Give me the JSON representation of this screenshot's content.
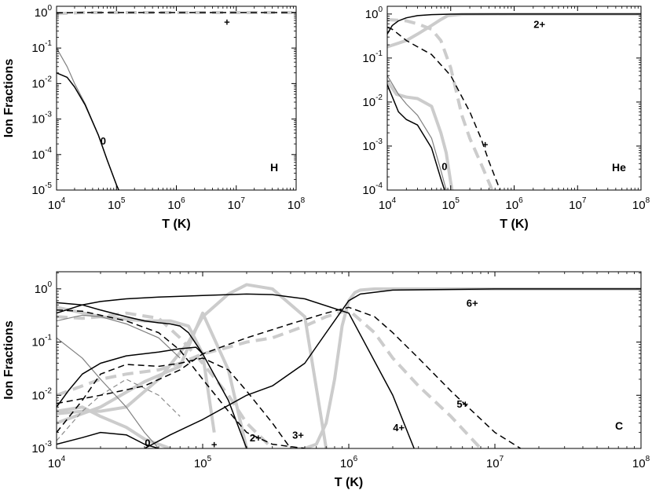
{
  "chart_data": [
    {
      "type": "line",
      "panel": "H",
      "xlabel": "T (K)",
      "ylabel": "Ion Fractions",
      "xscale": "log",
      "yscale": "log",
      "xlim": [
        10000,
        100000000
      ],
      "ylim": [
        1e-05,
        1.5
      ],
      "x_ticks": [
        {
          "base": "10",
          "exp": "4"
        },
        {
          "base": "10",
          "exp": "5"
        },
        {
          "base": "10",
          "exp": "6"
        },
        {
          "base": "10",
          "exp": "7"
        },
        {
          "base": "10",
          "exp": "8"
        }
      ],
      "y_ticks": [
        {
          "base": "10",
          "exp": "-5"
        },
        {
          "base": "10",
          "exp": "-4"
        },
        {
          "base": "10",
          "exp": "-3"
        },
        {
          "base": "10",
          "exp": "-2"
        },
        {
          "base": "10",
          "exp": "-1"
        },
        {
          "base": "10",
          "exp": "0"
        }
      ],
      "panel_label": "H",
      "labels": [
        {
          "text": "0",
          "x": 60000,
          "y": 0.00025
        },
        {
          "text": "+",
          "x": 7000000,
          "y": 0.55
        }
      ],
      "series": [
        {
          "style": "black-solid",
          "x": [
            10000,
            15000,
            20000,
            30000,
            50000,
            70000,
            100000,
            120000
          ],
          "y": [
            0.02,
            0.015,
            0.008,
            0.0025,
            0.00035,
            7e-05,
            1.4e-05,
            7e-06
          ]
        },
        {
          "style": "gray-thin",
          "x": [
            10000,
            15000,
            20000,
            30000,
            50000,
            70000,
            100000,
            120000
          ],
          "y": [
            0.1,
            0.03,
            0.01,
            0.0027,
            0.00035,
            7e-05,
            1.4e-05,
            7e-06
          ]
        },
        {
          "style": "black-dashed",
          "x": [
            10000,
            30000,
            100000,
            100000000
          ],
          "y": [
            0.98,
            0.998,
            1.0,
            1.0
          ]
        },
        {
          "style": "gray-thick-dashed",
          "x": [
            10000,
            30000,
            100000,
            100000000
          ],
          "y": [
            0.93,
            0.997,
            1.0,
            1.0
          ]
        }
      ]
    },
    {
      "type": "line",
      "panel": "He",
      "xlabel": "T (K)",
      "ylabel": "",
      "xscale": "log",
      "yscale": "log",
      "xlim": [
        10000,
        100000000
      ],
      "ylim": [
        0.0001,
        1.5
      ],
      "x_ticks": [
        {
          "base": "10",
          "exp": "4"
        },
        {
          "base": "10",
          "exp": "5"
        },
        {
          "base": "10",
          "exp": "6"
        },
        {
          "base": "10",
          "exp": "7"
        },
        {
          "base": "10",
          "exp": "8"
        }
      ],
      "y_ticks": [
        {
          "base": "10",
          "exp": "-4"
        },
        {
          "base": "10",
          "exp": "-3"
        },
        {
          "base": "10",
          "exp": "-2"
        },
        {
          "base": "10",
          "exp": "-1"
        },
        {
          "base": "10",
          "exp": "0"
        }
      ],
      "panel_label": "He",
      "labels": [
        {
          "text": "2+",
          "x": 2500000,
          "y": 0.6
        },
        {
          "text": "+",
          "x": 350000,
          "y": 0.0011
        },
        {
          "text": "0",
          "x": 80000,
          "y": 0.00035
        }
      ],
      "series": [
        {
          "style": "black-solid",
          "x": [
            10000,
            12000,
            15000,
            20000,
            30000,
            50000,
            100000,
            1000000,
            100000000
          ],
          "y": [
            0.35,
            0.55,
            0.7,
            0.82,
            0.92,
            0.97,
            0.997,
            1.0,
            1.0
          ]
        },
        {
          "style": "black-solid",
          "x": [
            10000,
            15000,
            20000,
            30000,
            50000,
            70000,
            80000
          ],
          "y": [
            0.025,
            0.006,
            0.004,
            0.003,
            0.0009,
            0.00018,
            0.0001
          ]
        },
        {
          "style": "gray-thin",
          "x": [
            10000,
            15000,
            20000,
            30000,
            50000,
            70000,
            85000
          ],
          "y": [
            0.04,
            0.015,
            0.009,
            0.005,
            0.0015,
            0.00028,
            0.0001
          ]
        },
        {
          "style": "black-dashed",
          "x": [
            10000,
            12000,
            15000,
            20000,
            30000,
            50000,
            100000,
            200000,
            300000,
            400000,
            600000
          ],
          "y": [
            0.5,
            0.45,
            0.35,
            0.25,
            0.18,
            0.12,
            0.04,
            0.006,
            0.0015,
            0.00045,
            0.0001
          ]
        },
        {
          "style": "gray-thick",
          "x": [
            10000,
            14000,
            20000,
            30000,
            50000,
            70000,
            85000,
            100000,
            105000
          ],
          "y": [
            0.03,
            0.015,
            0.013,
            0.012,
            0.008,
            0.002,
            0.0007,
            0.00015,
            0.0001
          ]
        },
        {
          "style": "gray-thick",
          "x": [
            10000,
            20000,
            30000,
            50000,
            70000,
            90000,
            150000,
            1000000,
            100000000
          ],
          "y": [
            0.18,
            0.25,
            0.35,
            0.55,
            0.75,
            0.92,
            0.99,
            1.0,
            1.0
          ]
        },
        {
          "style": "gray-thick-dashed",
          "x": [
            10000,
            20000,
            30000,
            50000,
            70000,
            100000,
            150000,
            200000,
            300000,
            450000
          ],
          "y": [
            0.75,
            0.7,
            0.6,
            0.45,
            0.25,
            0.06,
            0.005,
            0.0015,
            0.0004,
            0.0001
          ]
        }
      ]
    },
    {
      "type": "line",
      "panel": "C",
      "xlabel": "T (K)",
      "ylabel": "Ion Fractions",
      "xscale": "log",
      "yscale": "log",
      "xlim": [
        10000,
        100000000
      ],
      "ylim": [
        0.001,
        2.1
      ],
      "x_ticks": [
        {
          "base": "10",
          "exp": "4"
        },
        {
          "base": "10",
          "exp": "5"
        },
        {
          "base": "10",
          "exp": "6"
        },
        {
          "base": "10",
          "exp": "7"
        },
        {
          "base": "10",
          "exp": "8"
        }
      ],
      "y_ticks": [
        {
          "base": "10",
          "exp": "-3"
        },
        {
          "base": "10",
          "exp": "-2"
        },
        {
          "base": "10",
          "exp": "-1"
        },
        {
          "base": "10",
          "exp": "0"
        }
      ],
      "panel_label": "C",
      "labels": [
        {
          "text": "6+",
          "x": 7000000,
          "y": 0.55
        },
        {
          "text": "5+",
          "x": 6000000,
          "y": 0.007
        },
        {
          "text": "4+",
          "x": 2200000,
          "y": 0.0025
        },
        {
          "text": "3+",
          "x": 450000,
          "y": 0.0018
        },
        {
          "text": "2+",
          "x": 230000,
          "y": 0.0016
        },
        {
          "text": "+",
          "x": 120000,
          "y": 0.0012
        },
        {
          "text": "0",
          "x": 42000,
          "y": 0.0013
        }
      ],
      "series": [
        {
          "style": "black-solid",
          "x": [
            10000,
            15000,
            20000,
            30000,
            40000,
            50000
          ],
          "y": [
            0.0012,
            0.0016,
            0.002,
            0.0018,
            0.0012,
            0.001
          ]
        },
        {
          "style": "gray-thin",
          "x": [
            10000,
            15000,
            20000,
            30000,
            40000,
            50000
          ],
          "y": [
            0.12,
            0.05,
            0.02,
            0.006,
            0.002,
            0.001
          ]
        },
        {
          "style": "black-solid",
          "x": [
            10000,
            15000,
            20000,
            30000,
            40000,
            50000,
            60000,
            70000,
            80000,
            100000
          ],
          "y": [
            0.55,
            0.5,
            0.4,
            0.3,
            0.25,
            0.23,
            0.22,
            0.2,
            0.15,
            0.06
          ]
        },
        {
          "style": "gray-thin",
          "x": [
            10000,
            15000,
            20000,
            30000,
            50000,
            70000
          ],
          "y": [
            0.25,
            0.32,
            0.3,
            0.22,
            0.12,
            0.05
          ]
        },
        {
          "style": "black-solid",
          "x": [
            10000,
            12000,
            15000,
            20000,
            30000,
            50000,
            70000,
            90000,
            100000,
            150000,
            200000
          ],
          "y": [
            0.006,
            0.012,
            0.025,
            0.04,
            0.055,
            0.065,
            0.075,
            0.08,
            0.06,
            0.008,
            0.001
          ]
        },
        {
          "style": "black-solid",
          "x": [
            10000,
            15000,
            20000,
            30000,
            50000,
            100000,
            200000,
            300000,
            500000,
            1000000,
            2000000,
            2800000
          ],
          "y": [
            0.35,
            0.5,
            0.58,
            0.65,
            0.7,
            0.75,
            0.8,
            0.78,
            0.65,
            0.35,
            0.01,
            0.001
          ]
        },
        {
          "style": "black-solid",
          "x": [
            40000,
            60000,
            100000,
            200000,
            300000,
            500000,
            700000,
            900000,
            1000000,
            1200000,
            2000000,
            10000000,
            100000000
          ],
          "y": [
            0.001,
            0.0018,
            0.0035,
            0.01,
            0.015,
            0.04,
            0.15,
            0.4,
            0.6,
            0.8,
            0.95,
            1.0,
            1.0
          ]
        },
        {
          "style": "black-dashed",
          "x": [
            10000,
            15000,
            20000,
            30000,
            50000,
            70000,
            100000,
            150000,
            200000,
            300000,
            500000
          ],
          "y": [
            0.4,
            0.38,
            0.32,
            0.25,
            0.15,
            0.07,
            0.02,
            0.005,
            0.002,
            0.0012,
            0.001
          ]
        },
        {
          "style": "black-dashed",
          "x": [
            10000,
            15000,
            20000,
            30000,
            50000,
            70000,
            100000,
            150000,
            200000,
            300000,
            400000
          ],
          "y": [
            0.002,
            0.008,
            0.025,
            0.038,
            0.035,
            0.04,
            0.05,
            0.03,
            0.012,
            0.003,
            0.001
          ]
        },
        {
          "style": "gray-thin-dashed",
          "x": [
            10000,
            15000,
            20000,
            30000,
            50000,
            70000
          ],
          "y": [
            0.0014,
            0.005,
            0.01,
            0.02,
            0.01,
            0.004
          ]
        },
        {
          "style": "black-dashed",
          "x": [
            10000,
            20000,
            40000,
            70000,
            100000,
            200000,
            400000,
            700000,
            900000,
            1000000,
            1500000,
            2000000,
            3000000,
            5000000,
            10000000,
            15000000
          ],
          "y": [
            0.007,
            0.01,
            0.015,
            0.03,
            0.06,
            0.12,
            0.22,
            0.35,
            0.42,
            0.45,
            0.3,
            0.15,
            0.05,
            0.012,
            0.002,
            0.001
          ]
        },
        {
          "style": "gray-thick",
          "x": [
            10000,
            20000,
            40000,
            60000,
            80000,
            100000,
            120000
          ],
          "y": [
            0.45,
            0.3,
            0.25,
            0.25,
            0.2,
            0.06,
            0.002
          ]
        },
        {
          "style": "gray-thick",
          "x": [
            10000,
            20000,
            40000,
            70000,
            100000,
            150000,
            200000
          ],
          "y": [
            0.003,
            0.006,
            0.018,
            0.035,
            0.35,
            0.03,
            0.001
          ]
        },
        {
          "style": "gray-thick",
          "x": [
            10000,
            15000,
            20000,
            30000,
            40000,
            50000,
            60000
          ],
          "y": [
            0.005,
            0.006,
            0.004,
            0.0025,
            0.0015,
            0.0012,
            0.001
          ]
        },
        {
          "style": "gray-thick",
          "x": [
            10000,
            15000,
            20000,
            30000,
            50000,
            80000,
            100000,
            150000,
            200000,
            300000,
            500000,
            700000
          ],
          "y": [
            0.0045,
            0.005,
            0.005,
            0.006,
            0.02,
            0.1,
            0.3,
            0.8,
            1.2,
            1.0,
            0.3,
            0.001
          ]
        },
        {
          "style": "gray-thick",
          "x": [
            400000,
            500000,
            600000,
            700000,
            800000,
            900000,
            1000000,
            1100000,
            1200000,
            1500000,
            2000000,
            10000000,
            100000000
          ],
          "y": [
            0.001,
            0.001,
            0.0012,
            0.003,
            0.02,
            0.2,
            0.6,
            0.85,
            0.95,
            1.0,
            1.0,
            1.0,
            1.0
          ]
        },
        {
          "style": "gray-thick-dashed",
          "x": [
            10000,
            15000,
            20000,
            30000,
            50000,
            70000,
            100000,
            150000,
            200000,
            300000
          ],
          "y": [
            0.3,
            0.28,
            0.3,
            0.35,
            0.28,
            0.12,
            0.04,
            0.01,
            0.003,
            0.001
          ]
        },
        {
          "style": "gray-thick-dashed",
          "x": [
            10000,
            20000,
            30000,
            50000,
            70000,
            100000,
            150000,
            200000,
            300000,
            500000,
            700000,
            1000000,
            1500000,
            2000000,
            3000000,
            5000000,
            8000000
          ],
          "y": [
            0.01,
            0.02,
            0.025,
            0.03,
            0.04,
            0.06,
            0.08,
            0.1,
            0.12,
            0.2,
            0.3,
            0.4,
            0.15,
            0.05,
            0.015,
            0.004,
            0.001
          ]
        }
      ]
    }
  ]
}
